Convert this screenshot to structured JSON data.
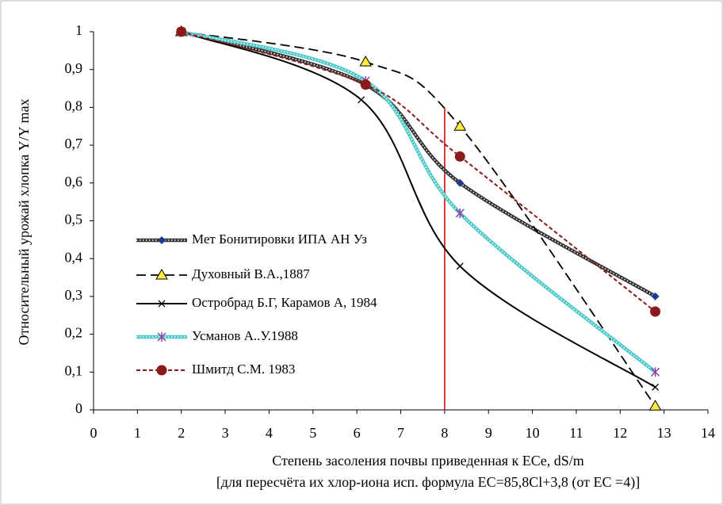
{
  "chart_data": {
    "type": "line",
    "ylabel": "Относительный урожай хлопка Y/Y max",
    "xlabel": "Степень засоления почвы приведенная к ECe, dS/m",
    "xlabel_note": "[для пересчёта их хлор-иона исп. формула   EC=85,8Cl+3,8  (от EC =4)]",
    "xlim": [
      0,
      14
    ],
    "xticks": [
      0,
      1,
      2,
      3,
      4,
      5,
      6,
      7,
      8,
      9,
      10,
      11,
      12,
      13,
      14
    ],
    "ylim": [
      0,
      1
    ],
    "yticks": [
      0,
      {
        "value": 0.1,
        "label": "0,1"
      },
      {
        "value": 0.2,
        "label": "0,2"
      },
      {
        "value": 0.3,
        "label": "0,3"
      },
      {
        "value": 0.4,
        "label": "0,4"
      },
      {
        "value": 0.5,
        "label": "0,5"
      },
      {
        "value": 0.6,
        "label": "0,6"
      },
      {
        "value": 0.7,
        "label": "0,7"
      },
      {
        "value": 0.8,
        "label": "0,8"
      },
      {
        "value": 0.9,
        "label": "0,9"
      },
      1
    ],
    "legend": "center-left",
    "vline": {
      "x": 8,
      "y_top": 0.8,
      "color": "#e02020"
    },
    "series": [
      {
        "name": "Мет Бонитировки ИПА АН Уз",
        "color": "#333333",
        "line_style": "dotted-band",
        "marker": "diamond",
        "marker_color": "#1f3a93",
        "x": [
          2,
          6.2,
          8.35,
          12.8
        ],
        "values": [
          1,
          0.86,
          0.6,
          0.3
        ]
      },
      {
        "name": "Духовный В.А.,1887",
        "color": "#000000",
        "line_style": "dashed",
        "marker": "triangle",
        "marker_color": "#ffeb3b",
        "x": [
          2,
          6.2,
          8.35,
          12.8
        ],
        "values": [
          1,
          0.92,
          0.75,
          0.01
        ]
      },
      {
        "name": "Остробрaд Б.Г, Карамов А, 1984",
        "color": "#000000",
        "line_style": "solid",
        "marker": "x",
        "marker_color": "#000000",
        "x": [
          2,
          6.1,
          8.35,
          12.8
        ],
        "values": [
          1,
          0.82,
          0.38,
          0.06
        ]
      },
      {
        "name": "Усманов А..У.1988",
        "color": "#4ec9c9",
        "line_style": "dotted-band",
        "marker": "asterisk",
        "marker_color": "#8e44ad",
        "x": [
          2,
          6.2,
          8.35,
          12.8
        ],
        "values": [
          1,
          0.87,
          0.52,
          0.1
        ]
      },
      {
        "name": "Шмитд С.М. 1983",
        "color": "#8b1a1a",
        "line_style": "short-dashed",
        "marker": "circle",
        "marker_color": "#8b1a1a",
        "x": [
          2,
          6.2,
          8.35,
          12.8
        ],
        "values": [
          1,
          0.86,
          0.67,
          0.26
        ]
      }
    ]
  }
}
